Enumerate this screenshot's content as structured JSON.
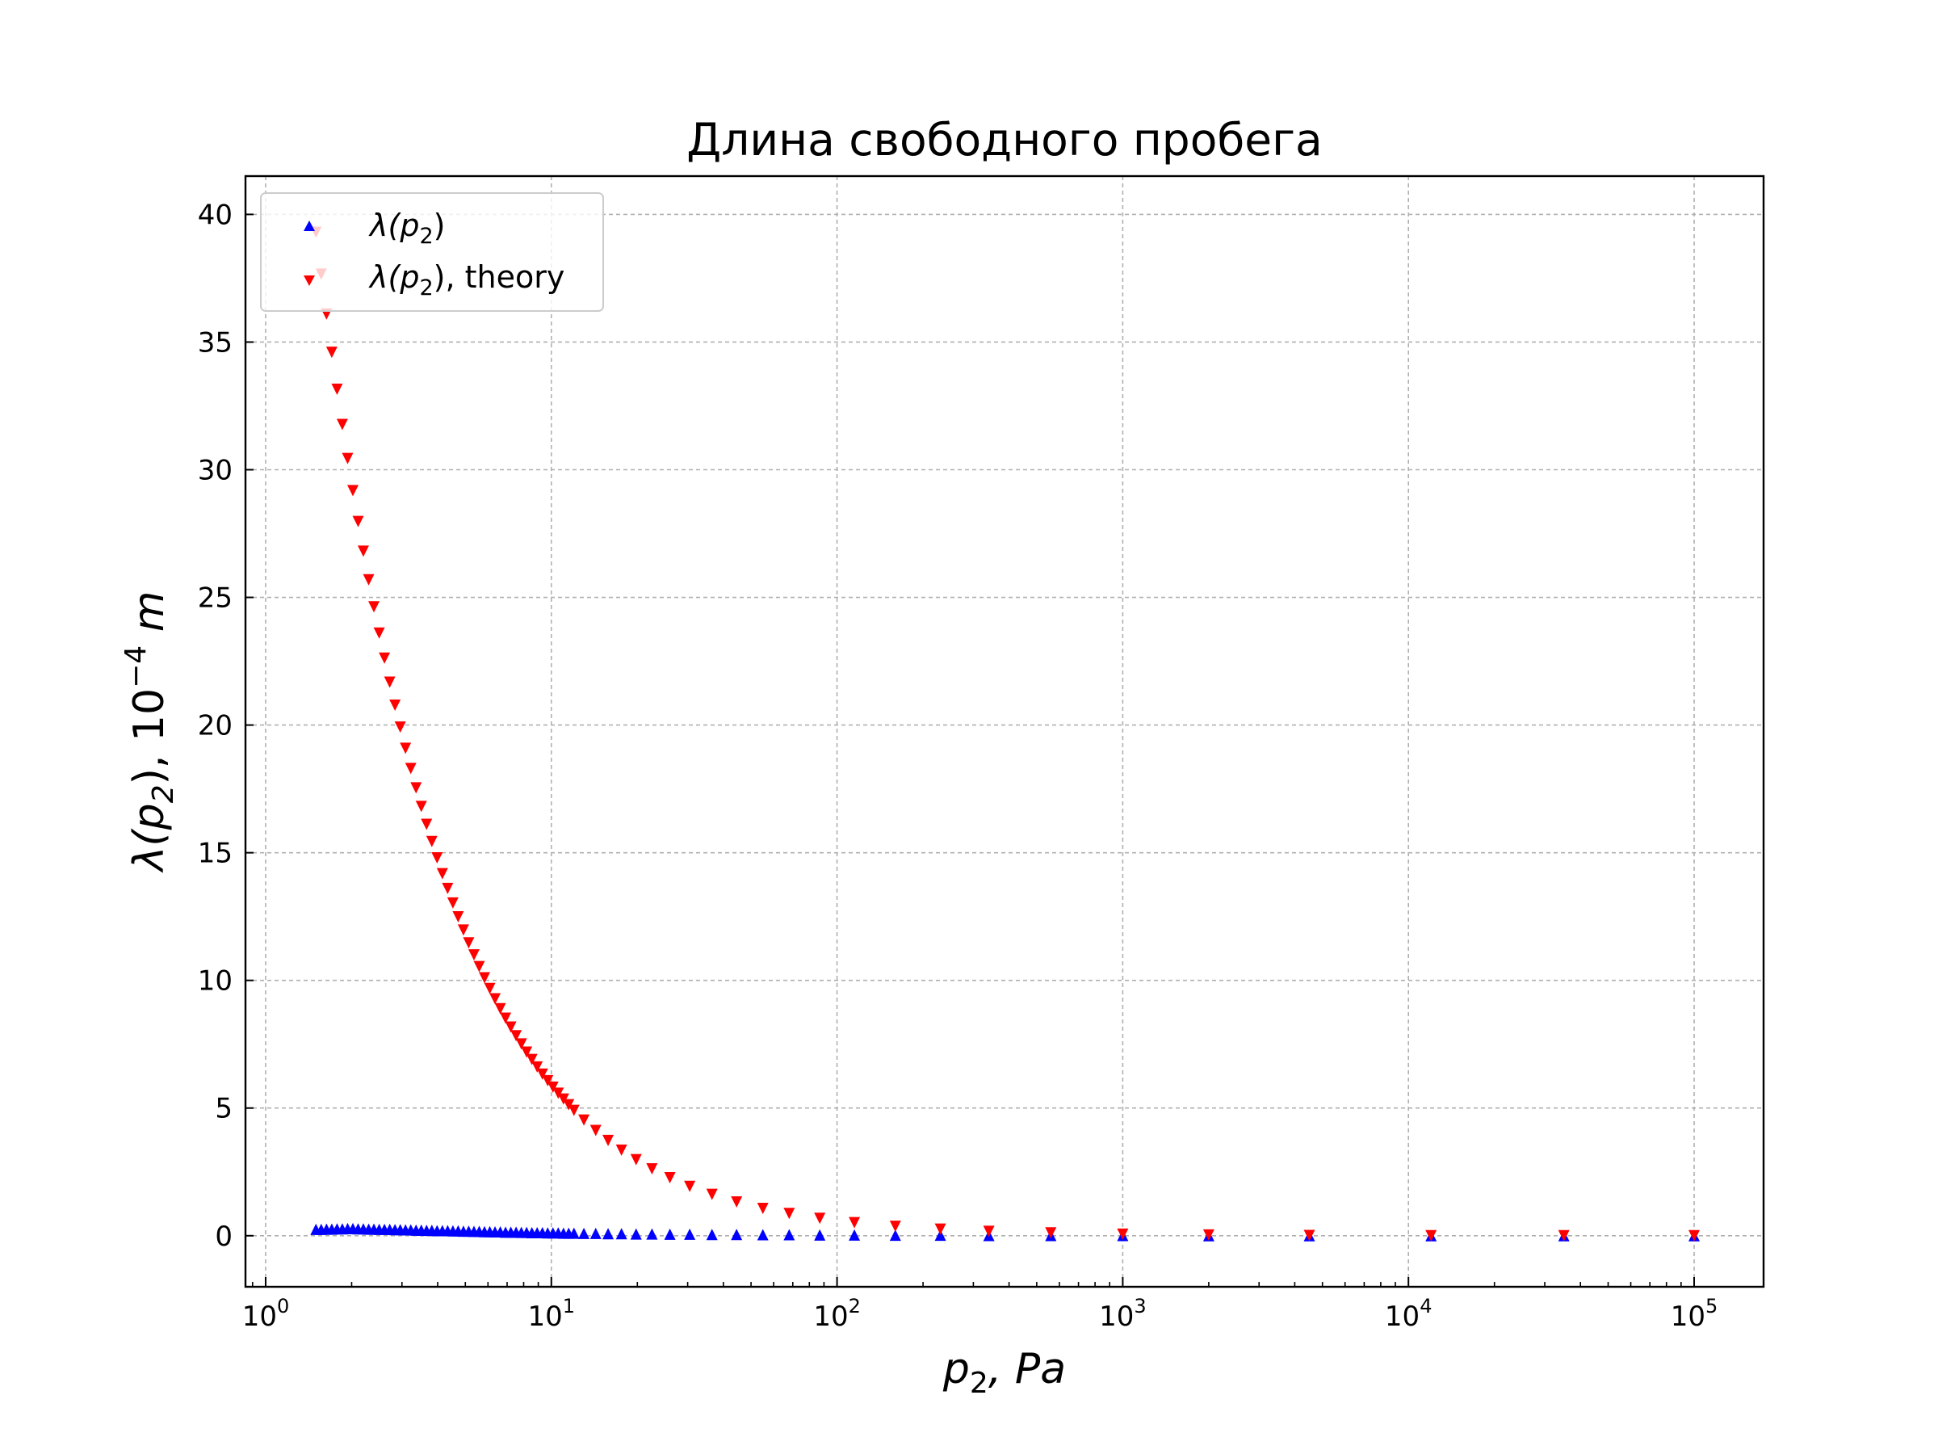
{
  "chart_data": {
    "type": "scatter",
    "title": "Длина свободного пробега",
    "xlabel": "p_2, Pa",
    "ylabel": "λ(p_2), 10^-4 m",
    "xscale": "log",
    "xlim": [
      0.85,
      175000
    ],
    "ylim": [
      -2,
      41.5
    ],
    "grid": true,
    "legend_position": "upper-left",
    "xticks": [
      {
        "base": "10",
        "exp": "0",
        "value": 1
      },
      {
        "base": "10",
        "exp": "1",
        "value": 10
      },
      {
        "base": "10",
        "exp": "2",
        "value": 100
      },
      {
        "base": "10",
        "exp": "3",
        "value": 1000
      },
      {
        "base": "10",
        "exp": "4",
        "value": 10000
      },
      {
        "base": "10",
        "exp": "5",
        "value": 100000
      }
    ],
    "yticks": [
      0,
      5,
      10,
      15,
      20,
      25,
      30,
      35,
      40
    ],
    "series": [
      {
        "name": "λ(p_2)",
        "legend_main": "λ(p",
        "legend_sub": "2",
        "legend_tail": ")",
        "color": "#0000ff",
        "marker": "triangle-up",
        "x": [
          1.5,
          1.565,
          1.633,
          1.704,
          1.778,
          1.855,
          1.936,
          2.02,
          2.107,
          2.198,
          2.294,
          2.393,
          2.497,
          2.605,
          2.718,
          2.836,
          2.959,
          3.087,
          3.221,
          3.361,
          3.506,
          3.658,
          3.817,
          3.982,
          4.155,
          4.335,
          4.523,
          4.719,
          4.924,
          5.137,
          5.36,
          5.592,
          5.835,
          6.088,
          6.351,
          6.627,
          6.914,
          7.214,
          7.527,
          7.853,
          8.193,
          8.548,
          8.919,
          9.306,
          9.709,
          10.13,
          10.57,
          11.03,
          11.5,
          12.0,
          13.0,
          14.3,
          15.8,
          17.6,
          19.8,
          22.5,
          26.0,
          30.5,
          36.5,
          44.5,
          55.0,
          68.0,
          87.0,
          115.0,
          160.0,
          230.0,
          340.0,
          560.0,
          1000.0,
          2000.0,
          4500.0,
          12000.0,
          35000.0,
          100000.0
        ],
        "y": [
          0.25,
          0.25,
          0.26,
          0.26,
          0.27,
          0.27,
          0.28,
          0.28,
          0.27,
          0.27,
          0.26,
          0.26,
          0.25,
          0.25,
          0.25,
          0.24,
          0.24,
          0.23,
          0.23,
          0.22,
          0.22,
          0.21,
          0.21,
          0.2,
          0.2,
          0.2,
          0.19,
          0.19,
          0.18,
          0.18,
          0.17,
          0.17,
          0.16,
          0.16,
          0.15,
          0.15,
          0.14,
          0.14,
          0.14,
          0.13,
          0.13,
          0.12,
          0.12,
          0.12,
          0.11,
          0.11,
          0.11,
          0.1,
          0.1,
          0.1,
          0.09,
          0.09,
          0.08,
          0.08,
          0.07,
          0.07,
          0.06,
          0.06,
          0.05,
          0.05,
          0.04,
          0.04,
          0.03,
          0.03,
          0.02,
          0.02,
          0.01,
          0.01,
          0.01,
          0.0,
          0.0,
          0.0,
          0.0,
          0.0
        ]
      },
      {
        "name": "λ(p_2), theory",
        "legend_main": "λ(p",
        "legend_sub": "2",
        "legend_tail": "), theory",
        "color": "#ff0000",
        "marker": "triangle-down",
        "x": [
          1.5,
          1.565,
          1.633,
          1.704,
          1.778,
          1.855,
          1.936,
          2.02,
          2.107,
          2.198,
          2.294,
          2.393,
          2.497,
          2.605,
          2.718,
          2.836,
          2.959,
          3.087,
          3.221,
          3.361,
          3.506,
          3.658,
          3.817,
          3.982,
          4.155,
          4.335,
          4.523,
          4.719,
          4.924,
          5.137,
          5.36,
          5.592,
          5.835,
          6.088,
          6.351,
          6.627,
          6.914,
          7.214,
          7.527,
          7.853,
          8.193,
          8.548,
          8.919,
          9.306,
          9.709,
          10.13,
          10.57,
          11.03,
          11.5,
          12.0,
          13.0,
          14.3,
          15.8,
          17.6,
          19.8,
          22.5,
          26.0,
          30.5,
          36.5,
          44.5,
          55.0,
          68.0,
          87.0,
          115.0,
          160.0,
          230.0,
          340.0,
          560.0,
          1000.0,
          2000.0,
          4500.0,
          12000.0,
          35000.0,
          100000.0
        ],
        "y": [
          39.3,
          37.66,
          36.1,
          34.6,
          33.15,
          31.77,
          30.44,
          29.18,
          27.97,
          26.81,
          25.69,
          24.63,
          23.6,
          22.62,
          21.68,
          20.78,
          19.92,
          19.09,
          18.3,
          17.54,
          16.81,
          16.11,
          15.44,
          14.8,
          14.18,
          13.6,
          13.03,
          12.49,
          11.97,
          11.47,
          11.0,
          10.54,
          10.1,
          9.68,
          9.28,
          8.89,
          8.52,
          8.17,
          7.83,
          7.51,
          7.19,
          6.9,
          6.61,
          6.33,
          6.07,
          5.82,
          5.58,
          5.35,
          5.13,
          4.91,
          4.53,
          4.12,
          3.73,
          3.35,
          2.98,
          2.62,
          2.27,
          1.93,
          1.62,
          1.32,
          1.07,
          0.87,
          0.68,
          0.51,
          0.37,
          0.26,
          0.17,
          0.11,
          0.06,
          0.03,
          0.01,
          0.0,
          0.0,
          0.0
        ]
      }
    ]
  }
}
